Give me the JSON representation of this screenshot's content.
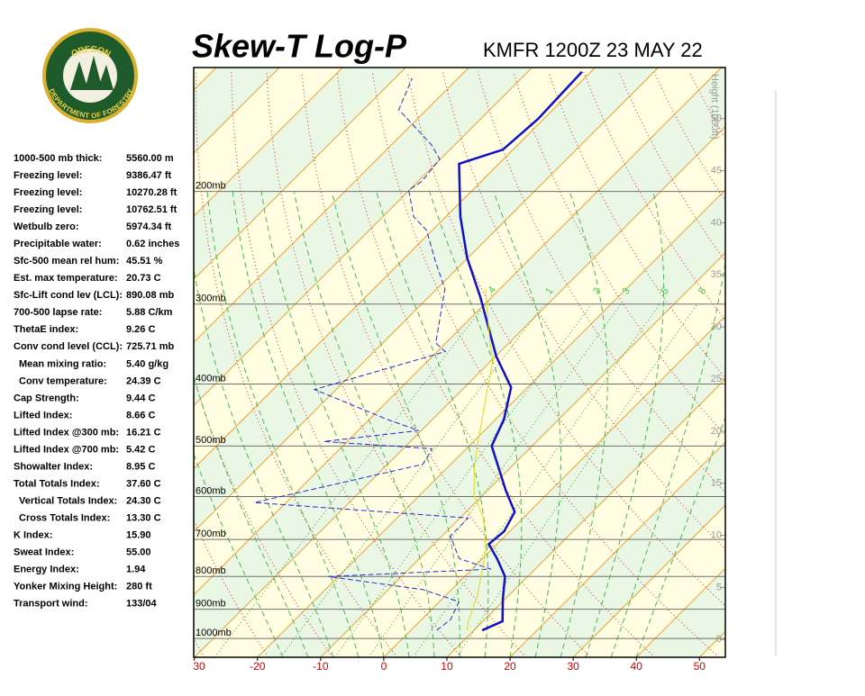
{
  "logo": {
    "top": "OREGON",
    "bottom": "DEPARTMENT OF FORESTRY"
  },
  "indices": [
    {
      "label": "1000-500 mb thick:",
      "value": "5560.00 m"
    },
    {
      "label": "Freezing level:",
      "value": "9386.47 ft"
    },
    {
      "label": "Freezing level:",
      "value": "10270.28 ft"
    },
    {
      "label": "Freezing level:",
      "value": "10762.51 ft"
    },
    {
      "label": "Wetbulb zero:",
      "value": "5974.34 ft"
    },
    {
      "label": "Precipitable water:",
      "value": "0.62 inches"
    },
    {
      "label": "Sfc-500 mean rel hum:",
      "value": "45.51 %"
    },
    {
      "label": "Est. max temperature:",
      "value": "20.73 C"
    },
    {
      "label": "Sfc-Lift cond lev (LCL):",
      "value": "890.08 mb"
    },
    {
      "label": "700-500 lapse rate:",
      "value": "5.88 C/km"
    },
    {
      "label": "ThetaE index:",
      "value": "9.26 C"
    },
    {
      "label": "Conv cond level (CCL):",
      "value": "725.71 mb"
    },
    {
      "label": "Mean mixing ratio:",
      "value": "5.40 g/kg"
    },
    {
      "label": "Conv temperature:",
      "value": "24.39 C"
    },
    {
      "label": "Cap Strength:",
      "value": "9.44 C"
    },
    {
      "label": "Lifted Index:",
      "value": "8.66 C"
    },
    {
      "label": "Lifted Index @300 mb:",
      "value": "16.21 C"
    },
    {
      "label": "Lifted Index @700 mb:",
      "value": "5.42 C"
    },
    {
      "label": "Showalter Index:",
      "value": "8.95 C"
    },
    {
      "label": "Total Totals Index:",
      "value": "37.60 C"
    },
    {
      "label": "Vertical Totals Index:",
      "value": "24.30 C"
    },
    {
      "label": "Cross Totals Index:",
      "value": "13.30 C"
    },
    {
      "label": "K Index:",
      "value": "15.90"
    },
    {
      "label": "Sweat Index:",
      "value": "55.00"
    },
    {
      "label": "Energy Index:",
      "value": "1.94"
    },
    {
      "label": "Yonker Mixing Height:",
      "value": "280 ft"
    },
    {
      "label": "Transport wind:",
      "value": "133/04"
    }
  ],
  "chart_data": {
    "type": "skew-t",
    "title": "Skew-T Log-P",
    "subtitle": "KMFR 1200Z 23 MAY 22",
    "xlim": [
      -30.1,
      54.1
    ],
    "xticks": [
      {
        "value": -30,
        "label": "30"
      },
      -20,
      -10,
      0,
      10,
      20,
      30,
      40,
      50
    ],
    "ylim": [
      1070,
      128
    ],
    "log_y": true,
    "yticks": [
      {
        "value": 1000,
        "label": "1000mb"
      },
      {
        "value": 900,
        "label": "900mb"
      },
      {
        "value": 800,
        "label": "800mb"
      },
      {
        "value": 700,
        "label": "700mb"
      },
      {
        "value": 600,
        "label": "600mb"
      },
      {
        "value": 500,
        "label": "500mb"
      },
      {
        "value": 400,
        "label": "400mb"
      },
      {
        "value": 300,
        "label": "300mb"
      },
      {
        "value": 200,
        "label": "200mb"
      }
    ],
    "y2label": "Height (1000ft)",
    "y2lim": [
      -1.7,
      54.9
    ],
    "y2ticks": [
      0,
      5,
      10,
      15,
      20,
      25,
      30,
      35,
      40,
      45,
      50
    ],
    "mixing_ratio_labels": [
      {
        "value": 0.4,
        "label": ".4"
      },
      1,
      2,
      3,
      5,
      8
    ],
    "series": [
      {
        "color": "#1010c8",
        "style": "solid",
        "pressure": [
          971,
          940,
          867,
          800,
          750,
          712,
          680,
          634,
          588,
          500,
          454,
          405,
          362,
          293,
          254,
          219,
          181,
          172,
          154,
          130
        ],
        "values": [
          11.3,
          13.1,
          9.6,
          6.4,
          2.3,
          -1.3,
          -0.9,
          -2.3,
          -7.0,
          -16.4,
          -18.7,
          -22.6,
          -29.9,
          -41.7,
          -50.1,
          -57.7,
          -66.3,
          -61.6,
          -60.9,
          -61.4
        ]
      },
      {
        "color": "#2a2ad8",
        "style": "dashed",
        "pressure": [
          971,
          934,
          876,
          839,
          800,
          779,
          750,
          691,
          648,
          613,
          534,
          505,
          492,
          473,
          454,
          408,
          356,
          345,
          284,
          258,
          230,
          219,
          199,
          193,
          178,
          169,
          149,
          133
        ],
        "values": [
          4.1,
          4.6,
          3.1,
          -4.4,
          -21.6,
          3.0,
          -3.7,
          -8.7,
          -8.7,
          -45.0,
          -24.4,
          -25.4,
          -43.7,
          -30.4,
          -37.3,
          -53.4,
          -38.7,
          -41.6,
          -48.7,
          -54.4,
          -60.9,
          -65.1,
          -70.1,
          -69.4,
          -70.1,
          -73.7,
          -84.4,
          -87.3
        ]
      },
      {
        "color": "#e0d820",
        "style": "solid",
        "pressure": [
          971,
          940,
          853,
          726,
          648,
          598,
          542,
          500,
          461,
          419,
          368,
          345,
          284
        ],
        "values": [
          8.9,
          7.7,
          4.9,
          -0.9,
          -6.3,
          -11.3,
          -15.6,
          -18.7,
          -21.6,
          -25.1,
          -29.7,
          -33.0,
          -42.3
        ]
      }
    ]
  }
}
